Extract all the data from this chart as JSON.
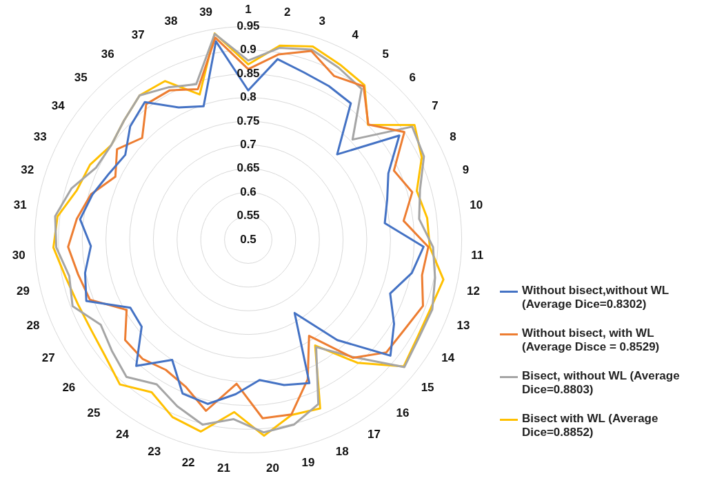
{
  "chart_data": {
    "type": "radar",
    "categories": [
      "1",
      "2",
      "3",
      "4",
      "5",
      "6",
      "7",
      "8",
      "9",
      "10",
      "11",
      "12",
      "13",
      "14",
      "15",
      "16",
      "17",
      "18",
      "19",
      "20",
      "21",
      "22",
      "23",
      "24",
      "25",
      "26",
      "27",
      "28",
      "29",
      "30",
      "31",
      "32",
      "33",
      "34",
      "35",
      "36",
      "37",
      "38",
      "39"
    ],
    "ylim": [
      0.5,
      0.95
    ],
    "yticks": [
      0.5,
      0.55,
      0.6,
      0.65,
      0.7,
      0.75,
      0.8,
      0.85,
      0.9,
      0.95
    ],
    "grid": true,
    "legend": "right",
    "marker": "none",
    "series": [
      {
        "name": "Without bisect,without WL (Average Dice=0.8302)",
        "color": "#4472c4",
        "values": [
          0.815,
          0.886,
          0.872,
          0.866,
          0.86,
          0.76,
          0.887,
          0.827,
          0.805,
          0.79,
          0.87,
          0.852,
          0.82,
          0.855,
          0.887,
          0.783,
          0.683,
          0.829,
          0.816,
          0.797,
          0.827,
          0.857,
          0.853,
          0.8,
          0.856,
          0.79,
          0.787,
          0.865,
          0.851,
          0.832,
          0.857,
          0.842,
          0.825,
          0.815,
          0.845,
          0.863,
          0.815,
          0.797,
          0.924
        ]
      },
      {
        "name": "Without bisect, with WL (Average Disce = 0.8529)",
        "color": "#ed7d31",
        "values": [
          0.86,
          0.896,
          0.92,
          0.89,
          0.905,
          0.851,
          0.9,
          0.84,
          0.86,
          0.83,
          0.88,
          0.874,
          0.894,
          0.88,
          0.876,
          0.833,
          0.74,
          0.82,
          0.88,
          0.878,
          0.805,
          0.872,
          0.837,
          0.825,
          0.836,
          0.835,
          0.796,
          0.857,
          0.866,
          0.88,
          0.864,
          0.845,
          0.81,
          0.836,
          0.81,
          0.858,
          0.856,
          0.835,
          0.932
        ]
      },
      {
        "name": "Bisect, without WL (Average Dice=0.8803)",
        "color": "#a5a5a5",
        "values": [
          0.878,
          0.91,
          0.923,
          0.91,
          0.898,
          0.805,
          0.92,
          0.91,
          0.877,
          0.863,
          0.89,
          0.902,
          0.915,
          0.915,
          0.925,
          0.83,
          0.768,
          0.877,
          0.902,
          0.908,
          0.88,
          0.902,
          0.882,
          0.861,
          0.887,
          0.871,
          0.859,
          0.896,
          0.885,
          0.905,
          0.91,
          0.888,
          0.855,
          0.851,
          0.863,
          0.881,
          0.863,
          0.846,
          0.94
        ]
      },
      {
        "name": "Bisect with WL (Average Dice=0.8852)",
        "color": "#ffc000",
        "values": [
          0.87,
          0.915,
          0.93,
          0.917,
          0.908,
          0.85,
          0.926,
          0.905,
          0.87,
          0.88,
          0.883,
          0.92,
          0.911,
          0.912,
          0.923,
          0.847,
          0.764,
          0.887,
          0.881,
          0.915,
          0.865,
          0.917,
          0.907,
          0.881,
          0.908,
          0.889,
          0.882,
          0.884,
          0.893,
          0.911,
          0.905,
          0.876,
          0.869,
          0.851,
          0.863,
          0.881,
          0.878,
          0.823,
          0.941
        ]
      }
    ]
  }
}
